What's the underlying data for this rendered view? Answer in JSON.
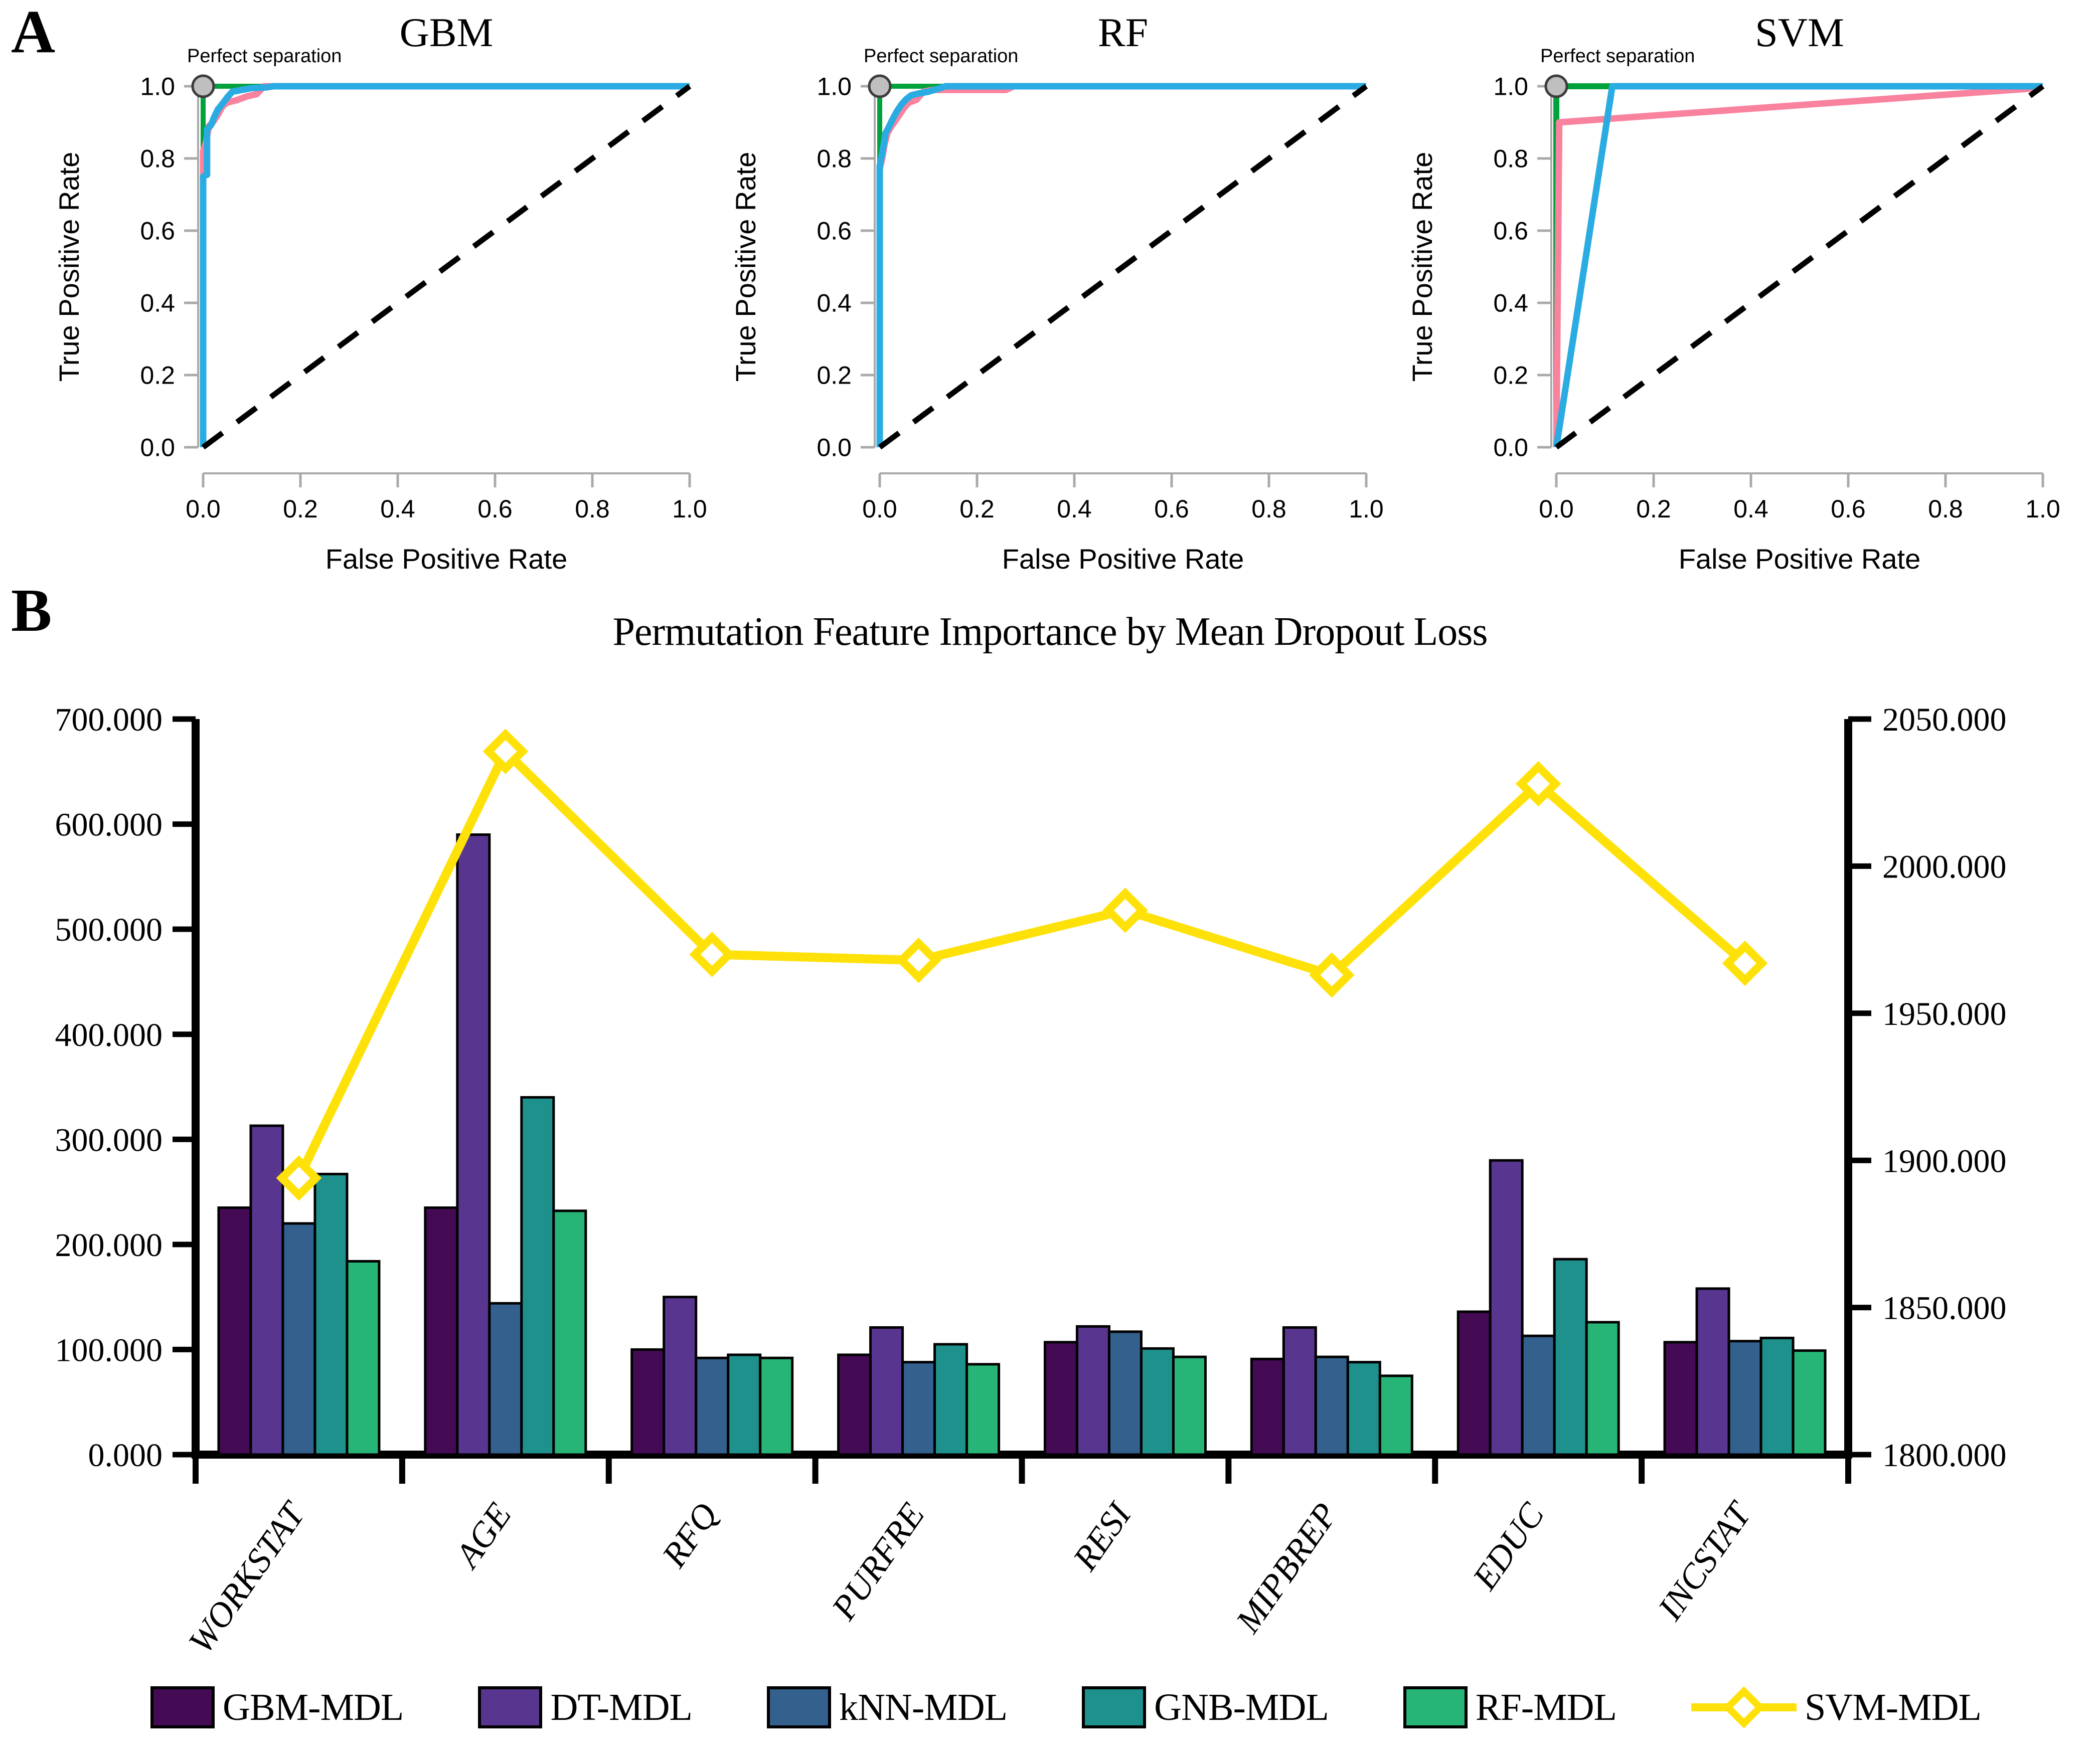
{
  "figure": {
    "panel_a_label": "A",
    "panel_b_label": "B"
  },
  "chart_data": [
    {
      "type": "line",
      "panel": "A",
      "title": "GBM",
      "xlabel": "False Positive Rate",
      "ylabel": "True Positive Rate",
      "xlim": [
        0,
        1
      ],
      "ylim": [
        0,
        1
      ],
      "x_ticks": [
        "0.0",
        "0.2",
        "0.4",
        "0.6",
        "0.8",
        "1.0"
      ],
      "y_ticks": [
        "0.0",
        "0.2",
        "0.4",
        "0.6",
        "0.8",
        "1.0"
      ],
      "annotation": {
        "text": "Perfect separation",
        "x": 0,
        "y": 1,
        "marker": "circle",
        "marker_fill": "#bfbfbf",
        "marker_edge": "#3c3c3c"
      },
      "series": [
        {
          "name": "roc-green",
          "color": "#00a23b",
          "width": 10,
          "points": [
            [
              0,
              0
            ],
            [
              0,
              1
            ],
            [
              1,
              1
            ]
          ]
        },
        {
          "name": "roc-pink",
          "color": "#f9829f",
          "width": 13,
          "points": [
            [
              0,
              0
            ],
            [
              0,
              0.82
            ],
            [
              0.006,
              0.845
            ],
            [
              0.012,
              0.89
            ],
            [
              0.02,
              0.9
            ],
            [
              0.03,
              0.92
            ],
            [
              0.04,
              0.945
            ],
            [
              0.05,
              0.955
            ],
            [
              0.07,
              0.962
            ],
            [
              0.09,
              0.972
            ],
            [
              0.11,
              0.978
            ],
            [
              0.125,
              1
            ],
            [
              1,
              1
            ]
          ]
        },
        {
          "name": "roc-blue",
          "color": "#2aabe2",
          "width": 13,
          "points": [
            [
              0,
              0
            ],
            [
              0,
              0.75
            ],
            [
              0.008,
              0.755
            ],
            [
              0.008,
              0.88
            ],
            [
              0.016,
              0.892
            ],
            [
              0.022,
              0.912
            ],
            [
              0.03,
              0.935
            ],
            [
              0.04,
              0.952
            ],
            [
              0.05,
              0.97
            ],
            [
              0.06,
              0.985
            ],
            [
              0.08,
              0.99
            ],
            [
              0.1,
              0.995
            ],
            [
              0.13,
              0.997
            ],
            [
              0.145,
              1
            ],
            [
              1,
              1
            ]
          ]
        },
        {
          "name": "chance-diagonal",
          "color": "#000000",
          "width": 11,
          "dash": "48 36",
          "points": [
            [
              0,
              0
            ],
            [
              1,
              1
            ]
          ]
        }
      ]
    },
    {
      "type": "line",
      "panel": "A",
      "title": "RF",
      "xlabel": "False Positive Rate",
      "ylabel": "True Positive Rate",
      "xlim": [
        0,
        1
      ],
      "ylim": [
        0,
        1
      ],
      "x_ticks": [
        "0.0",
        "0.2",
        "0.4",
        "0.6",
        "0.8",
        "1.0"
      ],
      "y_ticks": [
        "0.0",
        "0.2",
        "0.4",
        "0.6",
        "0.8",
        "1.0"
      ],
      "annotation": {
        "text": "Perfect separation",
        "x": 0,
        "y": 1,
        "marker": "circle",
        "marker_fill": "#bfbfbf",
        "marker_edge": "#3c3c3c"
      },
      "series": [
        {
          "name": "roc-green",
          "color": "#00a23b",
          "width": 10,
          "points": [
            [
              0,
              0
            ],
            [
              0,
              1
            ],
            [
              1,
              1
            ]
          ]
        },
        {
          "name": "roc-pink",
          "color": "#f9829f",
          "width": 13,
          "points": [
            [
              0,
              0
            ],
            [
              0,
              0.77
            ],
            [
              0.005,
              0.8
            ],
            [
              0.01,
              0.84
            ],
            [
              0.016,
              0.87
            ],
            [
              0.022,
              0.885
            ],
            [
              0.03,
              0.9
            ],
            [
              0.04,
              0.92
            ],
            [
              0.05,
              0.94
            ],
            [
              0.06,
              0.955
            ],
            [
              0.075,
              0.962
            ],
            [
              0.09,
              0.985
            ],
            [
              0.11,
              0.99
            ],
            [
              0.26,
              0.99
            ],
            [
              0.275,
              1
            ],
            [
              1,
              1
            ]
          ]
        },
        {
          "name": "roc-blue",
          "color": "#2aabe2",
          "width": 13,
          "points": [
            [
              0,
              0
            ],
            [
              0,
              0.78
            ],
            [
              0.006,
              0.82
            ],
            [
              0.012,
              0.87
            ],
            [
              0.018,
              0.885
            ],
            [
              0.025,
              0.905
            ],
            [
              0.035,
              0.93
            ],
            [
              0.045,
              0.95
            ],
            [
              0.055,
              0.965
            ],
            [
              0.065,
              0.975
            ],
            [
              0.08,
              0.98
            ],
            [
              0.1,
              0.985
            ],
            [
              0.12,
              0.993
            ],
            [
              0.135,
              1
            ],
            [
              1,
              1
            ]
          ]
        },
        {
          "name": "chance-diagonal",
          "color": "#000000",
          "width": 11,
          "dash": "48 36",
          "points": [
            [
              0,
              0
            ],
            [
              1,
              1
            ]
          ]
        }
      ]
    },
    {
      "type": "line",
      "panel": "A",
      "title": "SVM",
      "xlabel": "False Positive Rate",
      "ylabel": "True Positive Rate",
      "xlim": [
        0,
        1
      ],
      "ylim": [
        0,
        1
      ],
      "x_ticks": [
        "0.0",
        "0.2",
        "0.4",
        "0.6",
        "0.8",
        "1.0"
      ],
      "y_ticks": [
        "0.0",
        "0.2",
        "0.4",
        "0.6",
        "0.8",
        "1.0"
      ],
      "annotation": {
        "text": "Perfect separation",
        "x": 0,
        "y": 1,
        "marker": "circle",
        "marker_fill": "#bfbfbf",
        "marker_edge": "#3c3c3c"
      },
      "series": [
        {
          "name": "roc-green",
          "color": "#00a23b",
          "width": 12,
          "points": [
            [
              0,
              0
            ],
            [
              0,
              1
            ],
            [
              1,
              1
            ]
          ]
        },
        {
          "name": "roc-pink",
          "color": "#f9829f",
          "width": 13,
          "points": [
            [
              0,
              0
            ],
            [
              0.006,
              0.9
            ],
            [
              0.97,
              0.993
            ],
            [
              1,
              1
            ]
          ]
        },
        {
          "name": "roc-blue",
          "color": "#2aabe2",
          "width": 13,
          "points": [
            [
              0,
              0
            ],
            [
              0.115,
              1
            ],
            [
              1,
              1
            ]
          ]
        },
        {
          "name": "chance-diagonal",
          "color": "#000000",
          "width": 11,
          "dash": "48 36",
          "points": [
            [
              0,
              0
            ],
            [
              1,
              1
            ]
          ]
        }
      ]
    },
    {
      "type": "bar",
      "panel": "B",
      "title": "Permutation Feature Importance by Mean Dropout Loss",
      "categories": [
        "WORKSTAT",
        "AGE",
        "RFQ",
        "PURFRE",
        "RESI",
        "MIPBREP",
        "EDUC",
        "INCSTAT"
      ],
      "left_axis": {
        "ylim": [
          0,
          700
        ],
        "step": 100,
        "tick_labels": [
          "0.000",
          "100.000",
          "200.000",
          "300.000",
          "400.000",
          "500.000",
          "600.000",
          "700.000"
        ]
      },
      "right_axis": {
        "ylim": [
          1800,
          2050
        ],
        "step": 50,
        "tick_labels": [
          "1800.000",
          "1850.000",
          "1900.000",
          "1950.000",
          "2000.000",
          "2050.000"
        ]
      },
      "series": [
        {
          "name": "GBM-MDL",
          "color": "#440a54",
          "values": [
            235,
            235,
            100,
            95,
            107,
            91,
            136,
            107
          ]
        },
        {
          "name": "DT-MDL",
          "color": "#58358e",
          "values": [
            313,
            590,
            150,
            121,
            122,
            121,
            280,
            158
          ]
        },
        {
          "name": "kNN-MDL",
          "color": "#33608d",
          "values": [
            220,
            144,
            92,
            88,
            117,
            93,
            113,
            108
          ]
        },
        {
          "name": "GNB-MDL",
          "color": "#1f918c",
          "values": [
            267,
            340,
            95,
            105,
            101,
            88,
            186,
            111
          ]
        },
        {
          "name": "RF-MDL",
          "color": "#27b577",
          "values": [
            184,
            232,
            92,
            86,
            93,
            75,
            126,
            99
          ]
        }
      ],
      "line_series": {
        "name": "SVM-MDL",
        "color": "#ffe10a",
        "axis": "right",
        "values": [
          1894,
          2039,
          1970,
          1968,
          1985,
          1963,
          2028,
          1967
        ]
      },
      "legend_position": "bottom"
    }
  ]
}
